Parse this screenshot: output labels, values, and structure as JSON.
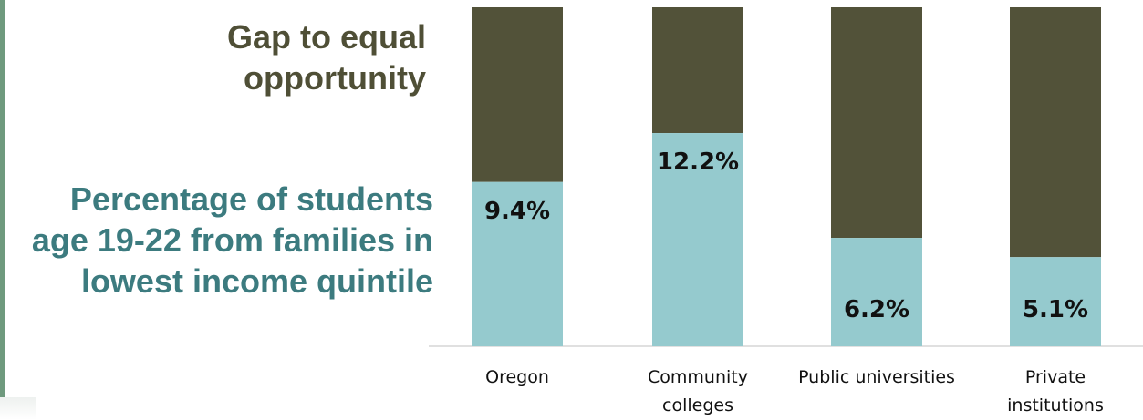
{
  "legend": {
    "gap_label": "Gap to equal opportunity",
    "percentage_label": "Percentage of students age 19-22 from families in lowest income quintile"
  },
  "colors": {
    "gap": "#525239",
    "percentage": "#95cace",
    "gap_text": "#4f4f36",
    "percentage_text": "#3c7b7f"
  },
  "chart_data": {
    "type": "bar",
    "stacked": true,
    "categories": [
      "Oregon",
      "Community colleges",
      "Public universities",
      "Private institutions"
    ],
    "series": [
      {
        "name": "Percentage of students age 19-22 from families in lowest income quintile",
        "values": [
          9.4,
          12.2,
          6.2,
          5.1
        ],
        "labels": [
          "9.4%",
          "12.2%",
          "6.2%",
          "5.1%"
        ]
      },
      {
        "name": "Gap to equal opportunity",
        "values": [
          10.0,
          7.2,
          13.2,
          14.3
        ]
      }
    ],
    "ylim": [
      0,
      19.4
    ],
    "axis": {
      "y_visible": false,
      "grid": false
    },
    "legend_placement": "left"
  }
}
